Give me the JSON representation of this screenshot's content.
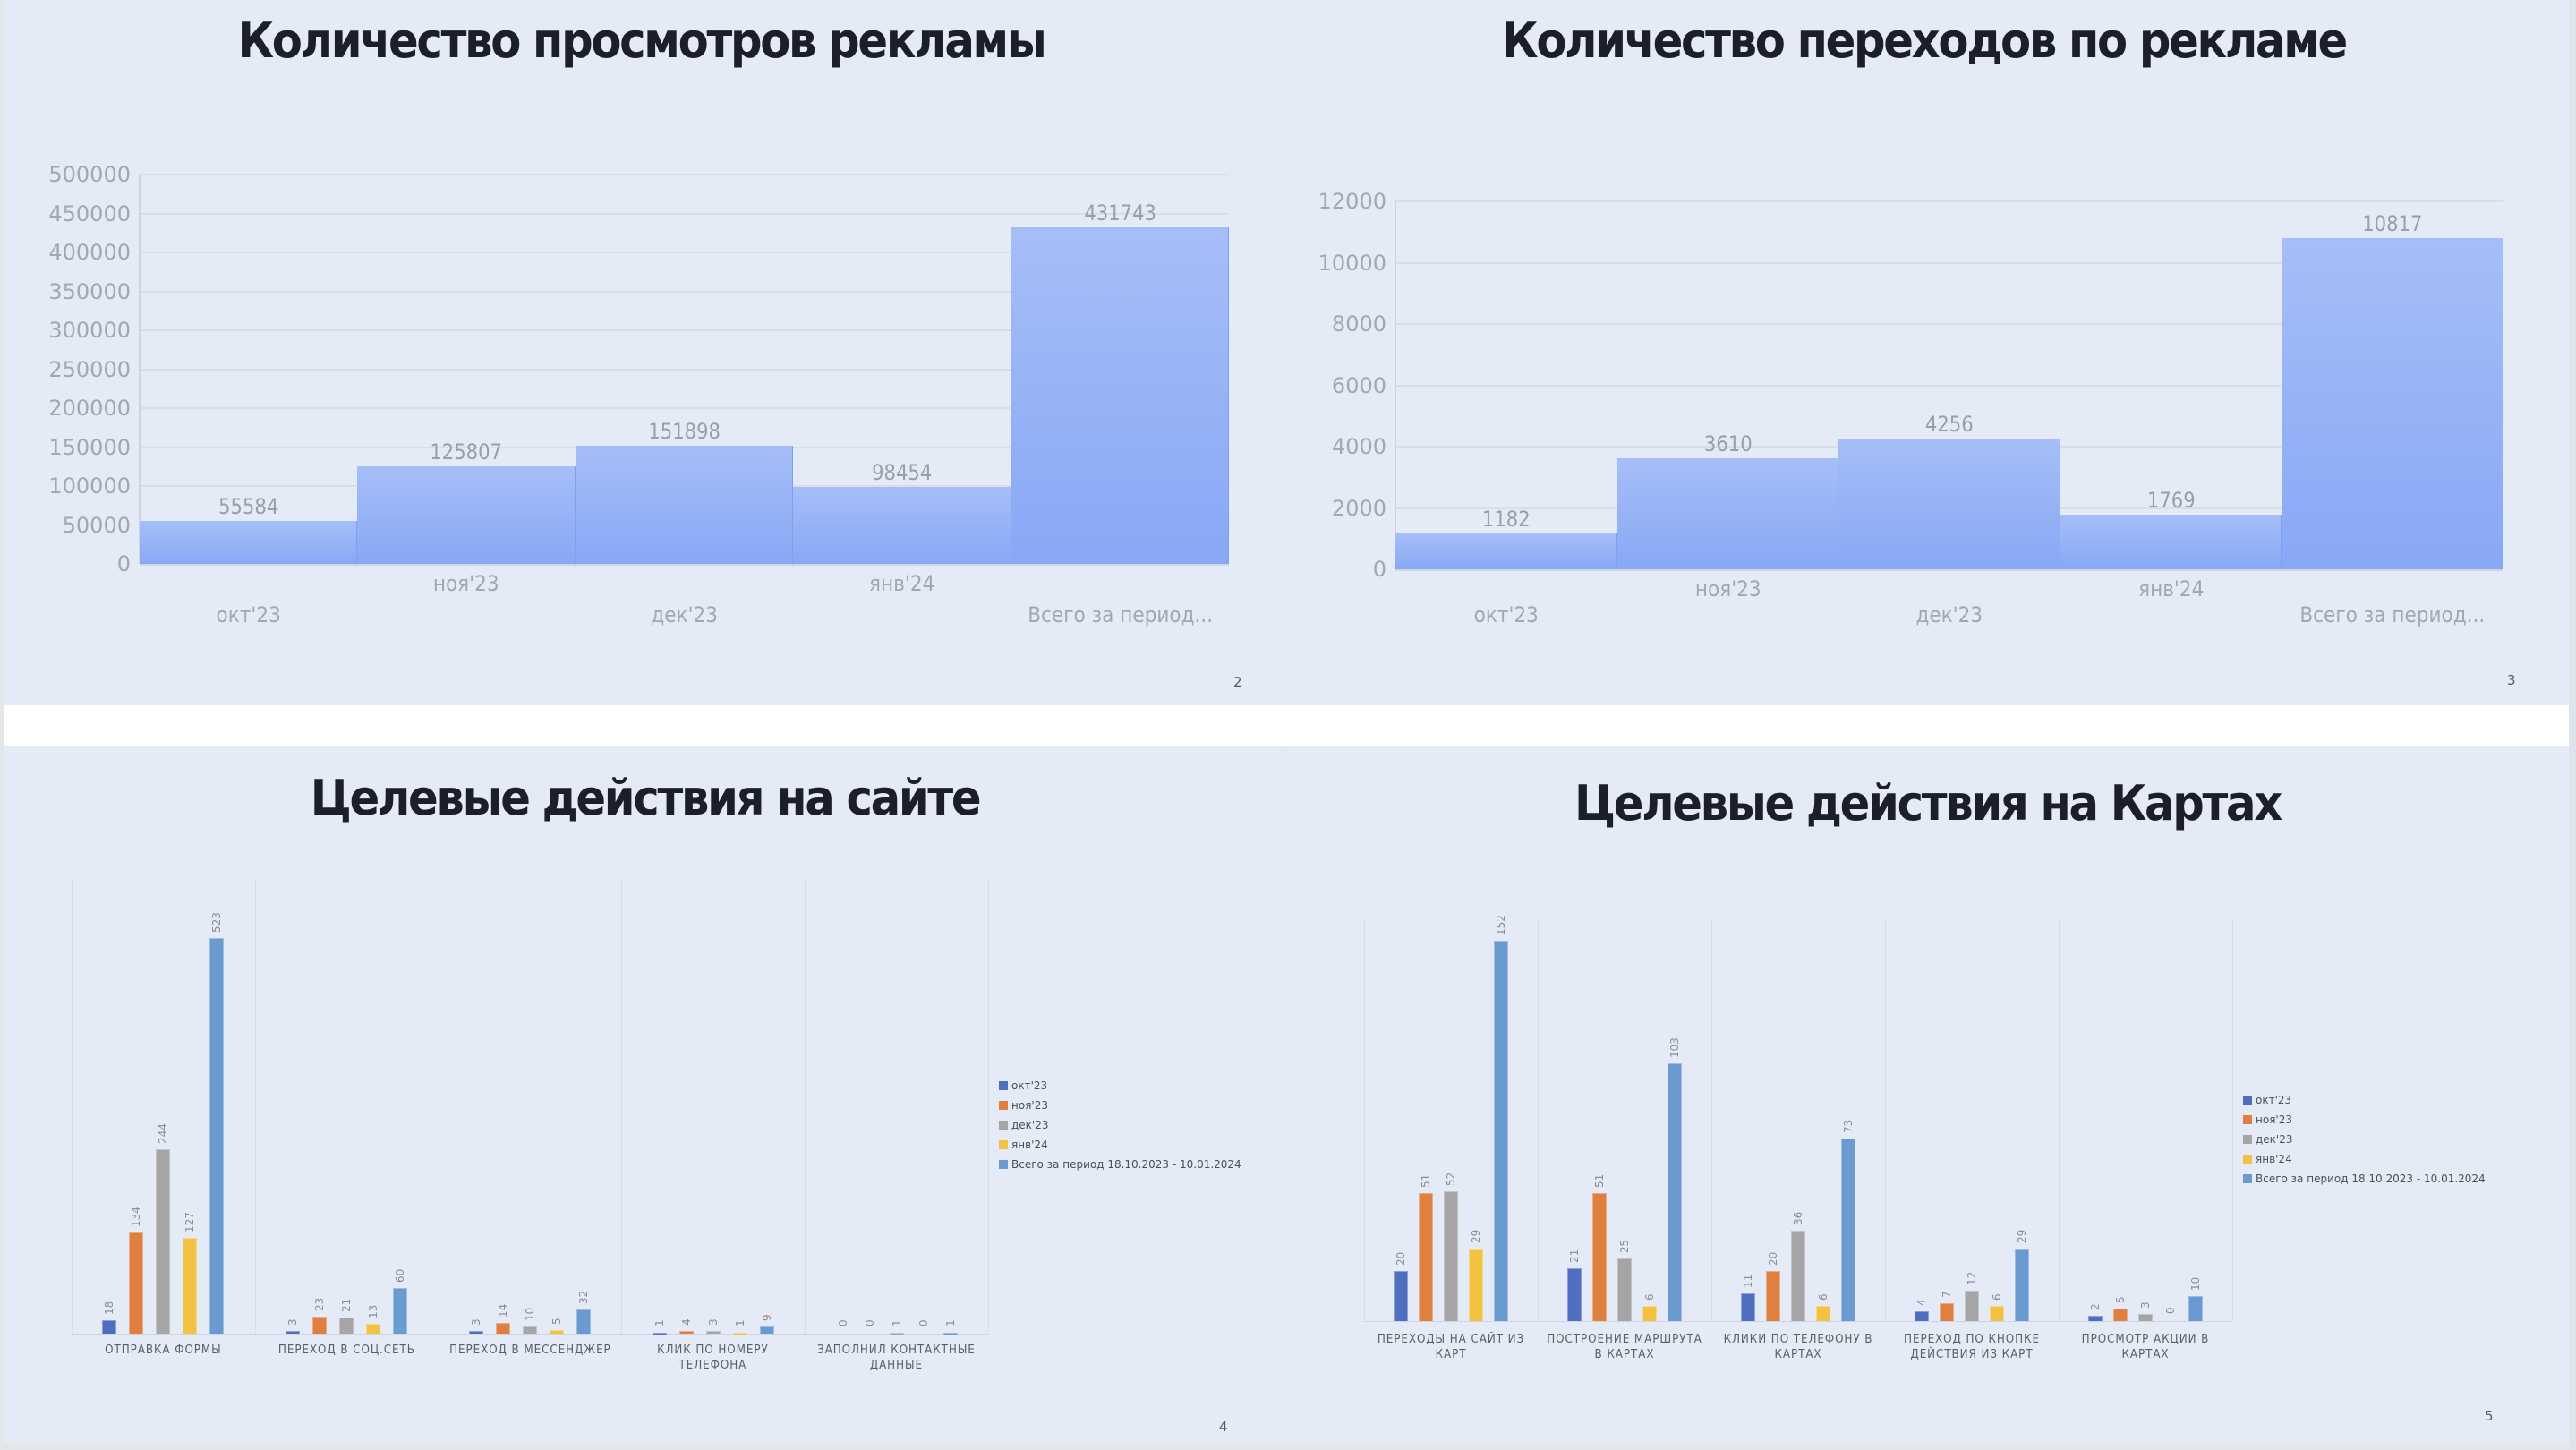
{
  "colors": {
    "slide_bg": "#e5ebf6",
    "title": "#1c1f2b",
    "series": [
      "#4e6fbf",
      "#e08040",
      "#a5a5a5",
      "#f4c243",
      "#6a9ad0"
    ]
  },
  "slides": [
    {
      "page_number": "2",
      "title": "Количество просмотров рекламы"
    },
    {
      "page_number": "3",
      "title": "Количество переходов по рекламе"
    },
    {
      "page_number": "4",
      "title": "Целевые действия на сайте"
    },
    {
      "page_number": "5",
      "title": "Целевые действия на Картах"
    }
  ],
  "chart_data": [
    {
      "type": "bar",
      "title": "Количество просмотров рекламы",
      "categories": [
        "окт'23",
        "ноя'23",
        "дек'23",
        "янв'24",
        "Всего за период..."
      ],
      "values": [
        55584,
        125807,
        151898,
        98454,
        431743
      ],
      "value_labels": [
        "55584",
        "125807",
        "151898",
        "98454",
        "431743"
      ],
      "xlabel": "",
      "ylabel": "",
      "ylim": [
        0,
        500000
      ],
      "yticks": [
        "0",
        "50000",
        "100000",
        "150000",
        "200000",
        "250000",
        "300000",
        "350000",
        "400000",
        "450000",
        "500000"
      ],
      "grid": true,
      "legend": null
    },
    {
      "type": "bar",
      "title": "Количество переходов по рекламе",
      "categories": [
        "окт'23",
        "ноя'23",
        "дек'23",
        "янв'24",
        "Всего за период..."
      ],
      "values": [
        1182,
        3610,
        4256,
        1769,
        10817
      ],
      "value_labels": [
        "1182",
        "3610",
        "4256",
        "1769",
        "10817"
      ],
      "xlabel": "",
      "ylabel": "",
      "ylim": [
        0,
        12000
      ],
      "yticks": [
        "0",
        "2000",
        "4000",
        "6000",
        "8000",
        "10000",
        "12000"
      ],
      "grid": true,
      "legend": null
    },
    {
      "type": "bar",
      "title": "Целевые действия на сайте",
      "categories": [
        "ОТПРАВКА ФОРМЫ",
        "ПЕРЕХОД В СОЦ.СЕТЬ",
        "ПЕРЕХОД В МЕССЕНДЖЕР",
        "КЛИК ПО НОМЕРУ ТЕЛЕФОНА",
        "ЗАПОЛНИЛ КОНТАКТНЫЕ ДАННЫЕ"
      ],
      "series": [
        {
          "name": "окт'23",
          "values": [
            18,
            3,
            3,
            1,
            0
          ]
        },
        {
          "name": "ноя'23",
          "values": [
            134,
            23,
            14,
            4,
            0
          ]
        },
        {
          "name": "дек'23",
          "values": [
            244,
            21,
            10,
            3,
            1
          ]
        },
        {
          "name": "янв'24",
          "values": [
            127,
            13,
            5,
            1,
            0
          ]
        },
        {
          "name": "Всего за период 18.10.2023 - 10.01.2024",
          "values": [
            523,
            60,
            32,
            9,
            1
          ]
        }
      ],
      "xlabel": "",
      "ylabel": "",
      "ylim": [
        0,
        560
      ],
      "grid": false,
      "legend": "right"
    },
    {
      "type": "bar",
      "title": "Целевые действия на Картах",
      "categories": [
        "ПЕРЕХОДЫ НА САЙТ ИЗ КАРТ",
        "ПОСТРОЕНИЕ МАРШРУТА В КАРТАХ",
        "КЛИКИ ПО ТЕЛЕФОНУ В КАРТАХ",
        "ПЕРЕХОД ПО КНОПКЕ ДЕЙСТВИЯ ИЗ КАРТ",
        "ПРОСМОТР АКЦИИ В КАРТАХ"
      ],
      "series": [
        {
          "name": "окт'23",
          "values": [
            20,
            21,
            11,
            4,
            2
          ]
        },
        {
          "name": "ноя'23",
          "values": [
            51,
            51,
            20,
            7,
            5
          ]
        },
        {
          "name": "дек'23",
          "values": [
            52,
            25,
            36,
            12,
            3
          ]
        },
        {
          "name": "янв'24",
          "values": [
            29,
            6,
            6,
            6,
            0
          ]
        },
        {
          "name": "Всего за период 18.10.2023 - 10.01.2024",
          "values": [
            152,
            103,
            73,
            29,
            10
          ]
        }
      ],
      "xlabel": "",
      "ylabel": "",
      "ylim": [
        0,
        160
      ],
      "grid": false,
      "legend": "right"
    }
  ]
}
